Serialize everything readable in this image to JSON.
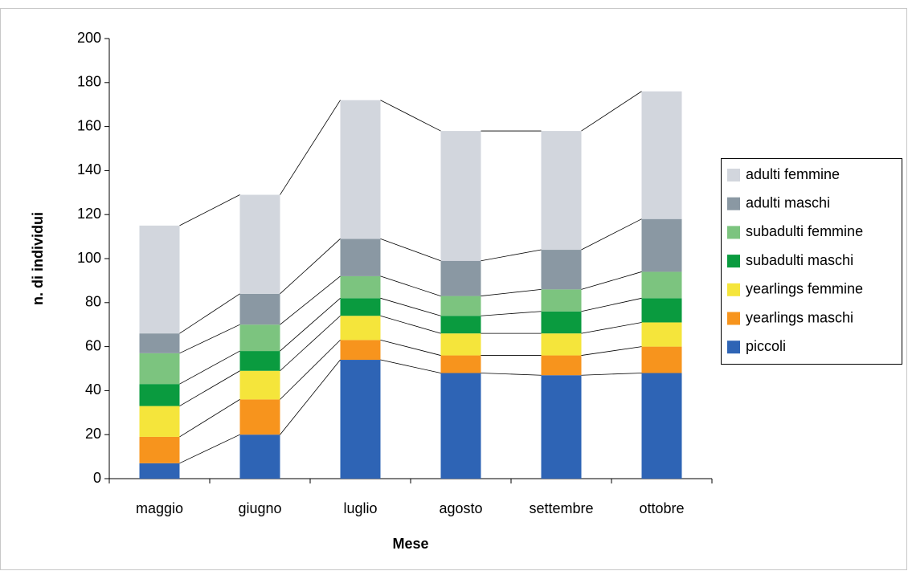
{
  "chart_data": {
    "type": "stacked_bar",
    "x_label": "Mese",
    "y_label": "n. di individui",
    "categories": [
      "maggio",
      "giugno",
      "luglio",
      "agosto",
      "settembre",
      "ottobre"
    ],
    "series": [
      {
        "name": "piccoli",
        "color": "#2e64b5",
        "values": [
          7,
          20,
          54,
          48,
          47,
          48
        ]
      },
      {
        "name": "yearlings maschi",
        "color": "#f7941d",
        "values": [
          12,
          16,
          9,
          8,
          9,
          12
        ]
      },
      {
        "name": "yearlings femmine",
        "color": "#f5e53b",
        "values": [
          14,
          13,
          11,
          10,
          10,
          11
        ]
      },
      {
        "name": "subadulti maschi",
        "color": "#0a9b3f",
        "values": [
          10,
          9,
          8,
          8,
          10,
          11
        ]
      },
      {
        "name": "subadulti femmine",
        "color": "#7cc47f",
        "values": [
          14,
          12,
          10,
          9,
          10,
          12
        ]
      },
      {
        "name": "adulti maschi",
        "color": "#8a98a3",
        "values": [
          9,
          14,
          17,
          16,
          18,
          24
        ]
      },
      {
        "name": "adulti femmine",
        "color": "#d2d6dd",
        "values": [
          49,
          45,
          63,
          59,
          54,
          58
        ]
      }
    ],
    "ylim": [
      0,
      200
    ],
    "yticks": [
      0,
      20,
      40,
      60,
      80,
      100,
      120,
      140,
      160,
      180,
      200
    ],
    "legend": "right"
  }
}
